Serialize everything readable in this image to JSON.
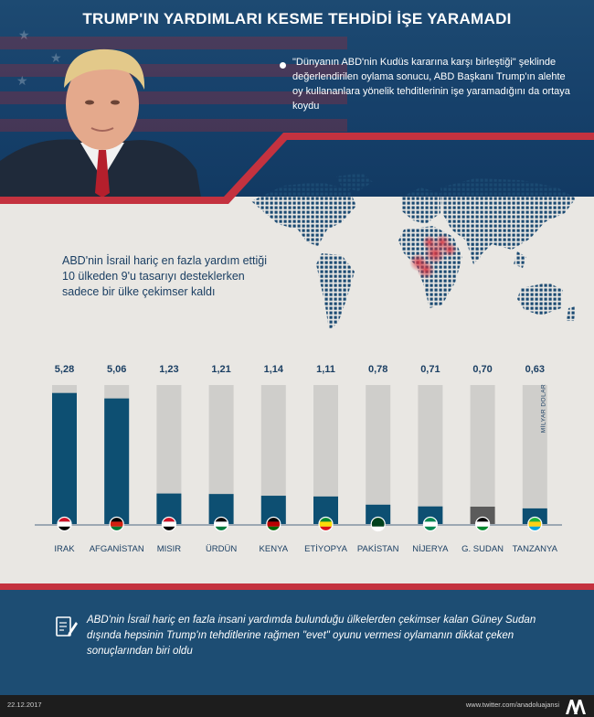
{
  "title": "TRUMP'IN YARDIMLARI KESME TEHDİDİ İŞE YARAMADI",
  "quote": "\"Dünyanın ABD'nin Kudüs kararına karşı birleştiği\" şeklinde değerlendirilen oylama sonucu, ABD Başkanı Trump'ın alehte oy kullananlara yönelik tehditlerinin işe yaramadığını da ortaya koydu",
  "lead": "ABD'nin İsrail hariç en fazla yardım ettiği 10 ülkeden 9'u tasarıyı desteklerken sadece bir ülke çekimser kaldı",
  "unit_label": "MİLYAR DOLAR",
  "note": "ABD'nin İsrail hariç en fazla insani yardımda bulunduğu ülkelerden çekimser kalan Güney Sudan dışında hepsinin Trump'ın tehditlerine rağmen \"evet\" oyunu vermesi oylamanın dikkat çeken sonuçlarından biri oldu",
  "footer": {
    "date": "22.12.2017",
    "twitter": "www.twitter.com/anadoluajansi",
    "logo_text": "AA"
  },
  "colors": {
    "blue": "#0d4f72",
    "grey_bar": "#cfcecb",
    "abstain": "#5b5b5b",
    "red": "#c4323f"
  },
  "chart_data": {
    "type": "bar",
    "title": "ABD'nin İsrail hariç en fazla yardım ettiği 10 ülke",
    "categories": [
      "IRAK",
      "AFGANİSTAN",
      "MISIR",
      "ÜRDÜN",
      "KENYA",
      "ETİYOPYA",
      "PAKİSTAN",
      "NİJERYA",
      "G. SUDAN",
      "TANZANYA"
    ],
    "values": [
      5.28,
      5.06,
      1.23,
      1.21,
      1.14,
      1.11,
      0.78,
      0.71,
      0.7,
      0.63
    ],
    "value_labels": [
      "5,28",
      "5,06",
      "1,23",
      "1,21",
      "1,14",
      "1,11",
      "0,78",
      "0,71",
      "0,70",
      "0,63"
    ],
    "vote": [
      "evet",
      "evet",
      "evet",
      "evet",
      "evet",
      "evet",
      "evet",
      "evet",
      "çekimser",
      "evet"
    ],
    "ylabel": "MİLYAR DOLAR",
    "ylim": [
      0,
      5.6
    ]
  }
}
